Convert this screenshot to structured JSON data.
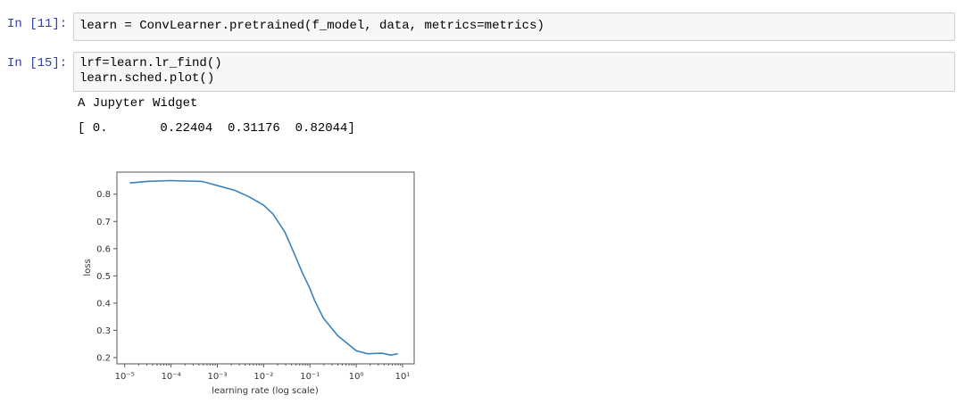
{
  "cells": [
    {
      "prompt": "In [11]:",
      "code": [
        "learn = ConvLearner.pretrained(f_model, data, metrics=metrics)"
      ]
    },
    {
      "prompt": "In [15]:",
      "code": [
        "lrf=learn.lr_find()",
        "learn.sched.plot()"
      ],
      "outputs": [
        "A Jupyter Widget",
        "[ 0.       0.22404  0.31176  0.82044]"
      ]
    }
  ],
  "colors": {
    "prompt": "#303f9f",
    "line": "#3b82b8",
    "cell_bg": "#f7f7f7"
  },
  "chart_data": {
    "type": "line",
    "xlabel": "learning rate (log scale)",
    "ylabel": "loss",
    "xscale": "log",
    "xlim": [
      6.8e-06,
      17.8
    ],
    "ylim": [
      0.177,
      0.881
    ],
    "xticks": [
      {
        "v": -5,
        "label": "10⁻⁵"
      },
      {
        "v": -4,
        "label": "10⁻⁴"
      },
      {
        "v": -3,
        "label": "10⁻³"
      },
      {
        "v": -2,
        "label": "10⁻²"
      },
      {
        "v": -1,
        "label": "10⁻¹"
      },
      {
        "v": 0,
        "label": "10⁰"
      },
      {
        "v": 1,
        "label": "10¹"
      }
    ],
    "yticks": [
      "0.2",
      "0.3",
      "0.4",
      "0.5",
      "0.6",
      "0.7",
      "0.8"
    ],
    "grid": false,
    "series": [
      {
        "x": [
          1.29e-05,
          3e-05,
          9.3e-05,
          0.00047,
          0.0024,
          0.0049,
          0.01,
          0.016,
          0.029,
          0.051,
          0.069,
          0.1,
          0.126,
          0.195,
          0.4,
          1.0,
          1.74,
          3.6,
          5.6,
          7.9
        ],
        "y": [
          0.841,
          0.847,
          0.85,
          0.847,
          0.814,
          0.79,
          0.76,
          0.727,
          0.66,
          0.563,
          0.51,
          0.454,
          0.41,
          0.345,
          0.28,
          0.225,
          0.214,
          0.216,
          0.209,
          0.214
        ]
      }
    ]
  }
}
